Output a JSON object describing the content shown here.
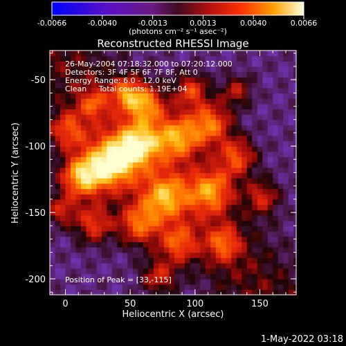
{
  "colorbar": {
    "ticks": [
      "-0.0066",
      "-0.0040",
      "-0.0013",
      "0.0013",
      "0.0040",
      "0.0066"
    ],
    "units": "(photons cm⁻² s⁻¹ asec⁻²)"
  },
  "chart_data": {
    "type": "heatmap",
    "title": "Reconstructed RHESSI Image",
    "xlabel": "Heliocentric X (arcsec)",
    "ylabel": "Heliocentric Y (arcsec)",
    "xlim": [
      -12,
      178
    ],
    "ylim": [
      -212,
      -28
    ],
    "x_ticks": [
      0,
      50,
      100,
      150
    ],
    "y_ticks": [
      -50,
      -100,
      -150,
      -200
    ],
    "clim": [
      -0.0066,
      0.0066
    ],
    "colormap": [
      "#0000ff",
      "#4a1fa8",
      "#7a1fa0",
      "#a0103c",
      "#d81010",
      "#ff5a00",
      "#ffa000",
      "#ffe040",
      "#ffffff"
    ],
    "annotations": [
      "26-May-2004 07:18:32.000 to 07:20:12.000",
      "Detectors: 3F 4F 5F 6F 7F 8F, Att 0",
      "Energy Range: 6.0 - 12.0 keV",
      "Clean     Total counts: 1.19E+04"
    ],
    "peak_label": "Position of Peak = [33,-115]",
    "peak": {
      "x": 33,
      "y": -115
    }
  },
  "footer": {
    "timestamp": "1-May-2022 03:18"
  }
}
